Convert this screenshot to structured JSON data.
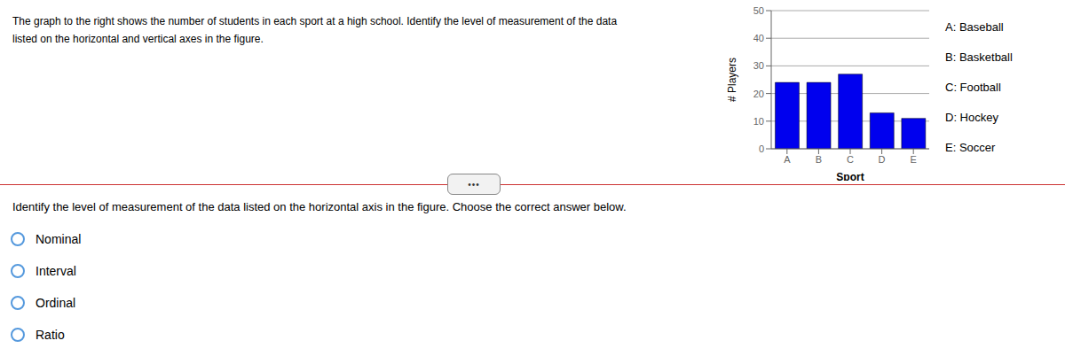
{
  "chart_data": {
    "type": "bar",
    "title": "The graph to the right shows the number of students in each sport at a high school. Identify the level of measurement of the data",
    "subtitle": "listed on the horizontal and vertical axes in the figure.",
    "categories": [
      "A",
      "B",
      "C",
      "D",
      "E"
    ],
    "values": [
      24,
      24,
      27,
      13,
      11
    ],
    "color": "#0000EE",
    "xlabel": "Sport",
    "ylabel": "# Players",
    "ylim": [
      0,
      50
    ],
    "yticks": [
      0,
      10,
      20,
      30,
      40,
      50
    ],
    "grid": true,
    "annotations": [
      "A: Baseball",
      "B: Basketball",
      "C: Football",
      "D: Hockey",
      "E: Soccer",
      "Identify the level of measurement of the data listed on the horizontal axis in the figure. Choose the correct answer below.",
      "Nominal",
      "Interval",
      "Ordinal",
      "Ratio",
      "•••"
    ]
  }
}
